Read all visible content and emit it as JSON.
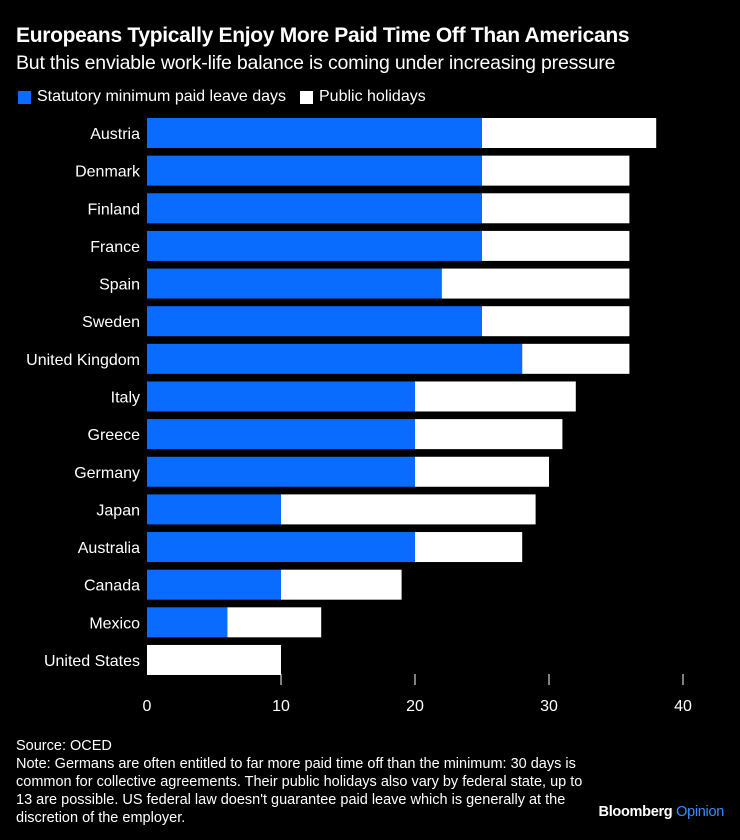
{
  "chart_data": {
    "type": "bar",
    "orientation": "horizontal",
    "stacked": true,
    "title": "Europeans Typically Enjoy More Paid Time Off Than Americans",
    "subtitle": "But this enviable work-life balance is coming under increasing pressure",
    "categories": [
      "Austria",
      "Denmark",
      "Finland",
      "France",
      "Spain",
      "Sweden",
      "United Kingdom",
      "Italy",
      "Greece",
      "Germany",
      "Japan",
      "Australia",
      "Canada",
      "Mexico",
      "United States"
    ],
    "series": [
      {
        "name": "Statutory minimum paid leave days",
        "color": "#0a6cff",
        "values": [
          25,
          25,
          25,
          25,
          22,
          25,
          28,
          20,
          20,
          20,
          10,
          20,
          10,
          6,
          0
        ]
      },
      {
        "name": "Public holidays",
        "color": "#ffffff",
        "values": [
          13,
          11,
          11,
          11,
          14,
          11,
          8,
          12,
          11,
          10,
          19,
          8,
          9,
          7,
          10
        ]
      }
    ],
    "xlim": [
      0,
      40
    ],
    "xticks": [
      "0",
      "10",
      "20",
      "30",
      "40"
    ],
    "grid": false,
    "legend": "top-left"
  },
  "footer": {
    "source": "Source: OCED",
    "note": "Note: Germans are often entitled to far more paid time off than the minimum: 30 days is common for collective agreements. Their public holidays also vary by federal state, up to 13 are possible. US federal law doesn't guarantee paid leave which is generally at the discretion of the employer."
  },
  "brand": {
    "name": "Bloomberg",
    "suffix": "Opinion"
  }
}
